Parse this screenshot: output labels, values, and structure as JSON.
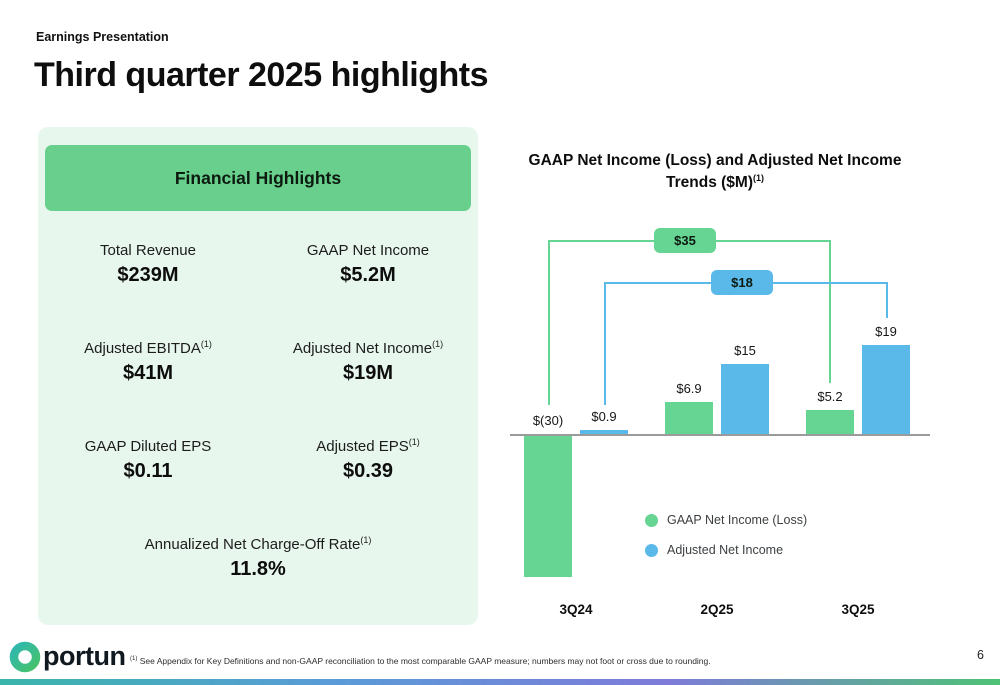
{
  "slide": {
    "eyebrow": "Earnings Presentation",
    "title": "Third quarter 2025 highlights",
    "logo_text": "portun",
    "footnote_sup": "(1)",
    "footnote_text": " See Appendix for Key Definitions and non-GAAP reconciliation to the most comparable GAAP measure; numbers may not foot or cross due to rounding.",
    "page_number": "6",
    "strip_colors": [
      "#3ab5ab",
      "#5a9bd8",
      "#7e7bd9",
      "#4ec276"
    ]
  },
  "colors": {
    "brand_green": "#68d08c",
    "brand_blue": "#5ab9e9",
    "panel_background": "#e8f7ee"
  },
  "highlights": {
    "header": "Financial Highlights",
    "metrics": [
      {
        "label": "Total Revenue",
        "sup": "",
        "value": "$239M"
      },
      {
        "label": "GAAP Net Income",
        "sup": "",
        "value": "$5.2M"
      },
      {
        "label": "Adjusted EBITDA",
        "sup": "(1)",
        "value": "$41M"
      },
      {
        "label": "Adjusted Net Income",
        "sup": "(1)",
        "value": "$19M"
      },
      {
        "label": "GAAP Diluted EPS",
        "sup": "",
        "value": "$0.11"
      },
      {
        "label": "Adjusted EPS",
        "sup": "(1)",
        "value": "$0.39"
      },
      {
        "label": "Annualized Net Charge-Off Rate",
        "sup": "(1)",
        "value": "11.8%"
      }
    ]
  },
  "chart_data": {
    "type": "bar",
    "title": "GAAP Net Income (Loss) and Adjusted Net Income Trends ($M)",
    "title_sup": "(1)",
    "categories": [
      "3Q24",
      "2Q25",
      "3Q25"
    ],
    "series": [
      {
        "name": "GAAP Net Income (Loss)",
        "color": "#66d492",
        "values": [
          -30,
          6.9,
          5.2
        ],
        "labels": [
          "$(30)",
          "$6.9",
          "$5.2"
        ]
      },
      {
        "name": "Adjusted Net Income",
        "color": "#5ab9e9",
        "values": [
          0.9,
          15,
          19
        ],
        "labels": [
          "$0.9",
          "$15",
          "$19"
        ]
      }
    ],
    "annotations": [
      {
        "label": "$35",
        "color": "#66d492"
      },
      {
        "label": "$18",
        "color": "#5ab9e9"
      }
    ],
    "ylabel": "",
    "xlabel": "",
    "baseline": 0,
    "grid": false,
    "legend_position": "bottom-center"
  }
}
